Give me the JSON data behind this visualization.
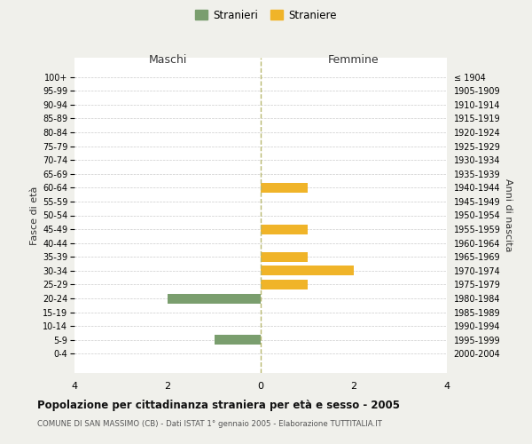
{
  "age_groups": [
    "100+",
    "95-99",
    "90-94",
    "85-89",
    "80-84",
    "75-79",
    "70-74",
    "65-69",
    "60-64",
    "55-59",
    "50-54",
    "45-49",
    "40-44",
    "35-39",
    "30-34",
    "25-29",
    "20-24",
    "15-19",
    "10-14",
    "5-9",
    "0-4"
  ],
  "birth_years": [
    "≤ 1904",
    "1905-1909",
    "1910-1914",
    "1915-1919",
    "1920-1924",
    "1925-1929",
    "1930-1934",
    "1935-1939",
    "1940-1944",
    "1945-1949",
    "1950-1954",
    "1955-1959",
    "1960-1964",
    "1965-1969",
    "1970-1974",
    "1975-1979",
    "1980-1984",
    "1985-1989",
    "1990-1994",
    "1995-1999",
    "2000-2004"
  ],
  "maschi": [
    0,
    0,
    0,
    0,
    0,
    0,
    0,
    0,
    0,
    0,
    0,
    0,
    0,
    0,
    0,
    0,
    2,
    0,
    0,
    1,
    0
  ],
  "femmine": [
    0,
    0,
    0,
    0,
    0,
    0,
    0,
    0,
    1,
    0,
    0,
    1,
    0,
    1,
    2,
    1,
    0,
    0,
    0,
    0,
    0
  ],
  "maschi_color": "#7a9e6e",
  "femmine_color": "#f0b429",
  "title": "Popolazione per cittadinanza straniera per età e sesso - 2005",
  "subtitle": "COMUNE DI SAN MASSIMO (CB) - Dati ISTAT 1° gennaio 2005 - Elaborazione TUTTITALIA.IT",
  "xlabel_left": "Maschi",
  "xlabel_right": "Femmine",
  "ylabel_left": "Fasce di età",
  "ylabel_right": "Anni di nascita",
  "xlim": 4,
  "legend_stranieri": "Stranieri",
  "legend_straniere": "Straniere",
  "background_color": "#f0f0eb",
  "bar_background": "#ffffff",
  "grid_color": "#cccccc",
  "zero_line_color": "#b8b870",
  "text_color": "#333333",
  "title_color": "#111111",
  "subtitle_color": "#555555"
}
